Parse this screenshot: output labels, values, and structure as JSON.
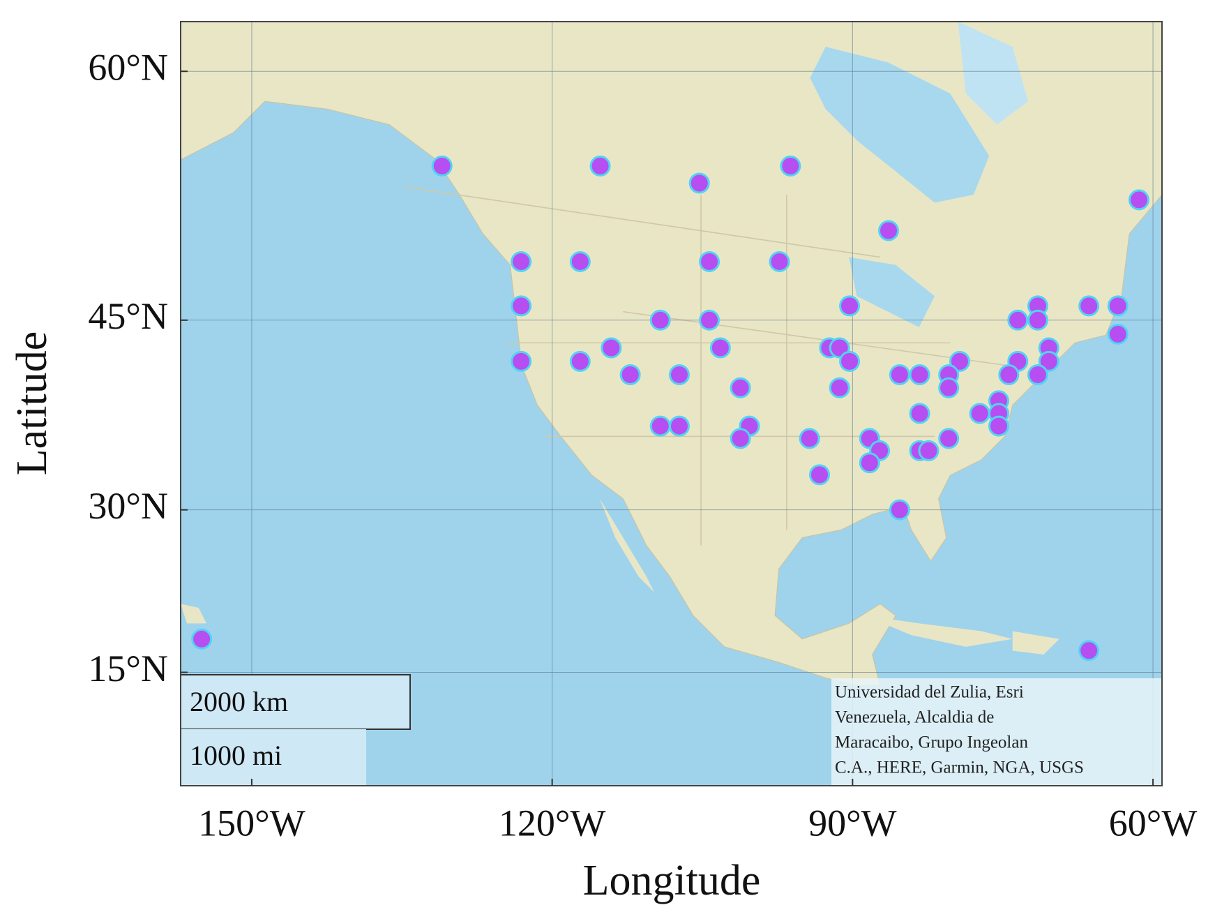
{
  "chart_data": {
    "type": "scatter",
    "projection": "mercator",
    "xlabel": "Longitude",
    "ylabel": "Latitude",
    "xlim": [
      -157.1,
      -59.1
    ],
    "ylim": [
      3.8,
      62.4
    ],
    "xticks": [
      {
        "value": -150,
        "label": "150°W"
      },
      {
        "value": -120,
        "label": "120°W"
      },
      {
        "value": -90,
        "label": "90°W"
      },
      {
        "value": -60,
        "label": "60°W"
      }
    ],
    "yticks": [
      {
        "value": 60,
        "label": "60°N"
      },
      {
        "value": 45,
        "label": "45°N"
      },
      {
        "value": 30,
        "label": "30°N"
      },
      {
        "value": 15,
        "label": "15°N"
      }
    ],
    "grid": true,
    "color": "#b64ef2",
    "edgecolor": "#52d3f2",
    "x": [
      -131.0,
      -115.2,
      -105.3,
      -96.2,
      -61.4,
      -86.4,
      -123.1,
      -117.2,
      -104.3,
      -97.3,
      -123.1,
      -90.3,
      -71.5,
      -66.4,
      -63.5,
      -109.2,
      -104.3,
      -73.5,
      -71.5,
      -63.5,
      -114.1,
      -103.2,
      -92.3,
      -91.3,
      -70.4,
      -123.1,
      -117.2,
      -90.3,
      -79.3,
      -73.5,
      -70.4,
      -112.2,
      -107.3,
      -85.3,
      -83.3,
      -80.4,
      -74.4,
      -71.5,
      -101.2,
      -91.3,
      -80.4,
      -75.4,
      -83.3,
      -77.3,
      -75.4,
      -109.2,
      -107.3,
      -100.3,
      -75.4,
      -101.2,
      -94.3,
      -88.3,
      -80.4,
      -87.3,
      -83.3,
      -82.4,
      -88.3,
      -93.3,
      -85.3,
      -155.0,
      -66.4
    ],
    "values": [
      54.9,
      54.9,
      53.9,
      54.9,
      52.9,
      51.0,
      49.0,
      49.0,
      49.0,
      49.0,
      46.0,
      46.0,
      46.0,
      46.0,
      46.0,
      45.0,
      45.0,
      45.0,
      45.0,
      44.0,
      43.0,
      43.0,
      43.0,
      43.0,
      43.0,
      42.0,
      42.0,
      42.0,
      42.0,
      42.0,
      42.0,
      41.0,
      41.0,
      41.0,
      41.0,
      41.0,
      41.0,
      41.0,
      40.0,
      40.0,
      40.0,
      39.0,
      38.0,
      38.0,
      38.0,
      37.0,
      37.0,
      37.0,
      37.0,
      36.0,
      36.0,
      36.0,
      36.0,
      35.0,
      35.0,
      35.0,
      34.0,
      33.0,
      30.0,
      18.2,
      17.1
    ],
    "scalebar": [
      "2000 km",
      "1000 mi"
    ],
    "attribution": [
      "Universidad del Zulia, Esri",
      "Venezuela, Alcaldia de",
      "Maracaibo, Grupo Ingeolan",
      "C.A., HERE, Garmin, NGA, USGS"
    ]
  }
}
